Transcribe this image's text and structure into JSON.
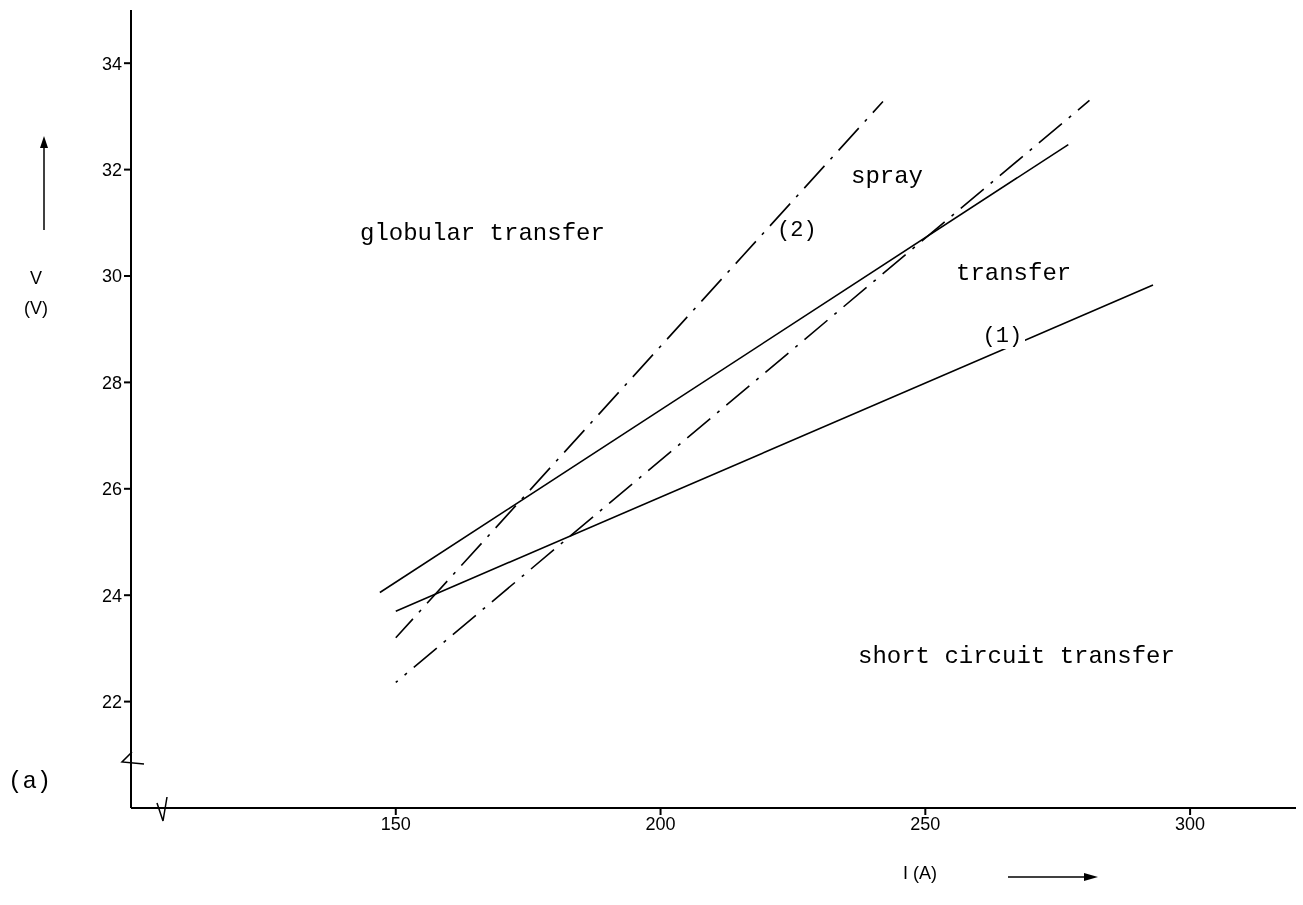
{
  "chart_data": {
    "type": "line",
    "xlabel": "I (A)",
    "ylabel": "V (V)",
    "xlim": [
      100,
      320
    ],
    "xticks": [
      150,
      200,
      250,
      300
    ],
    "ylim": [
      20,
      35
    ],
    "yticks": [
      22,
      24,
      26,
      28,
      30,
      32,
      34
    ],
    "marker": "none",
    "series": [
      {
        "color": "#000000",
        "line_style": "solid",
        "x": [
          147,
          277
        ],
        "values": [
          24.05,
          32.47
        ]
      },
      {
        "name": "(1)",
        "color": "#000000",
        "line_style": "solid",
        "x": [
          150,
          293
        ],
        "values": [
          23.7,
          29.83
        ]
      },
      {
        "name": "(2)",
        "color": "#000000",
        "line_style": "dashed",
        "x": [
          150,
          242
        ],
        "values": [
          23.2,
          33.28
        ]
      },
      {
        "color": "#000000",
        "line_style": "dashed",
        "x": [
          150,
          281
        ],
        "values": [
          22.36,
          33.3
        ]
      }
    ],
    "annotations": [
      "globular transfer",
      "spray",
      "transfer",
      "short circuit transfer",
      "(a)"
    ]
  }
}
